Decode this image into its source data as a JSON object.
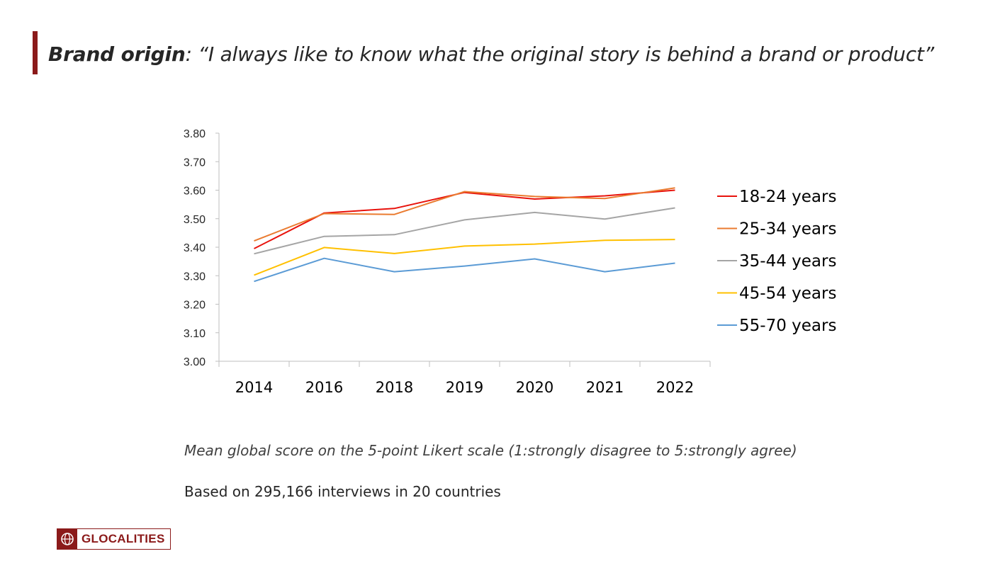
{
  "title": {
    "strong": "Brand origin",
    "rest": ": “I always like to know what the original story is behind a brand or product”"
  },
  "notes": {
    "scale": "Mean global score on the 5-point Likert scale (1:strongly disagree to 5:strongly agree)",
    "base": "Based on 295,166 interviews in 20 countries"
  },
  "logo": {
    "text": "GLOCALITIES",
    "color": "#8b1a1a"
  },
  "chart_data": {
    "type": "line",
    "title": "",
    "xlabel": "",
    "ylabel": "",
    "categories": [
      "2014",
      "2016",
      "2018",
      "2019",
      "2020",
      "2021",
      "2022"
    ],
    "ylim": [
      3.0,
      3.8
    ],
    "yticks": [
      "3.00",
      "3.10",
      "3.20",
      "3.30",
      "3.40",
      "3.50",
      "3.60",
      "3.70",
      "3.80"
    ],
    "legend_position": "right",
    "grid": false,
    "series": [
      {
        "name": "18-24 years",
        "color": "#e8120c",
        "values": [
          3.395,
          3.52,
          3.536,
          3.592,
          3.569,
          3.58,
          3.6
        ]
      },
      {
        "name": "25-34 years",
        "color": "#ea7b30",
        "values": [
          3.422,
          3.518,
          3.515,
          3.595,
          3.578,
          3.571,
          3.608
        ]
      },
      {
        "name": "35-44 years",
        "color": "#a5a5a5",
        "values": [
          3.377,
          3.438,
          3.444,
          3.496,
          3.522,
          3.499,
          3.538
        ]
      },
      {
        "name": "45-54 years",
        "color": "#ffc000",
        "values": [
          3.302,
          3.399,
          3.378,
          3.404,
          3.411,
          3.424,
          3.427
        ]
      },
      {
        "name": "55-70 years",
        "color": "#5b9bd5",
        "values": [
          3.28,
          3.361,
          3.314,
          3.334,
          3.359,
          3.314,
          3.344
        ]
      }
    ]
  }
}
